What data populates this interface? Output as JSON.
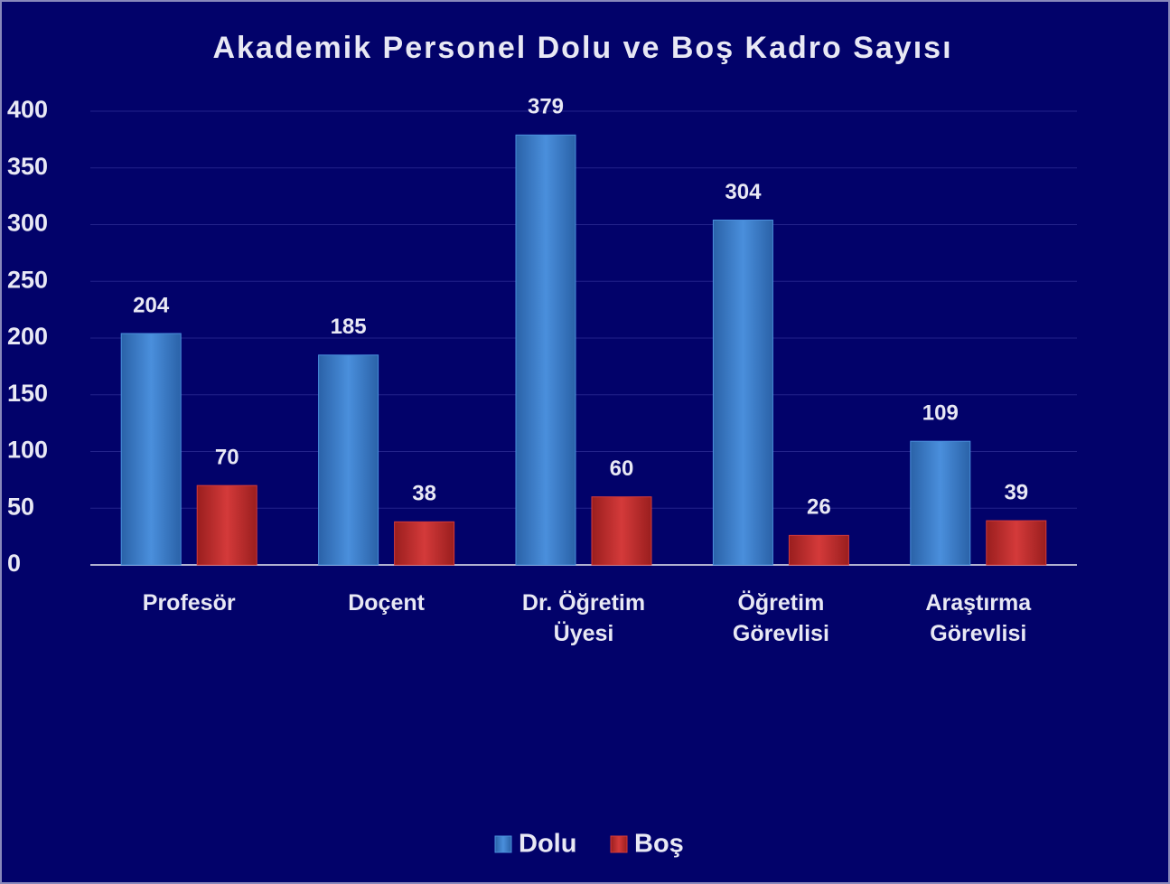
{
  "chart_data": {
    "type": "bar",
    "title": "Akademik Personel Dolu ve Boş Kadro Sayısı",
    "categories": [
      "Profesör",
      "Doçent",
      "Dr. Öğretim Üyesi",
      "Öğretim Görevlisi",
      "Araştırma Görevlisi"
    ],
    "series": [
      {
        "name": "Dolu",
        "color": "#4a8fdc",
        "values": [
          204,
          185,
          379,
          304,
          109
        ]
      },
      {
        "name": "Boş",
        "color": "#d43a3a",
        "values": [
          70,
          38,
          60,
          26,
          39
        ]
      }
    ],
    "ylim": [
      0,
      400
    ],
    "yticks": [
      0,
      50,
      100,
      150,
      200,
      250,
      300,
      350,
      400
    ],
    "grid": true,
    "legend": "bottom"
  }
}
